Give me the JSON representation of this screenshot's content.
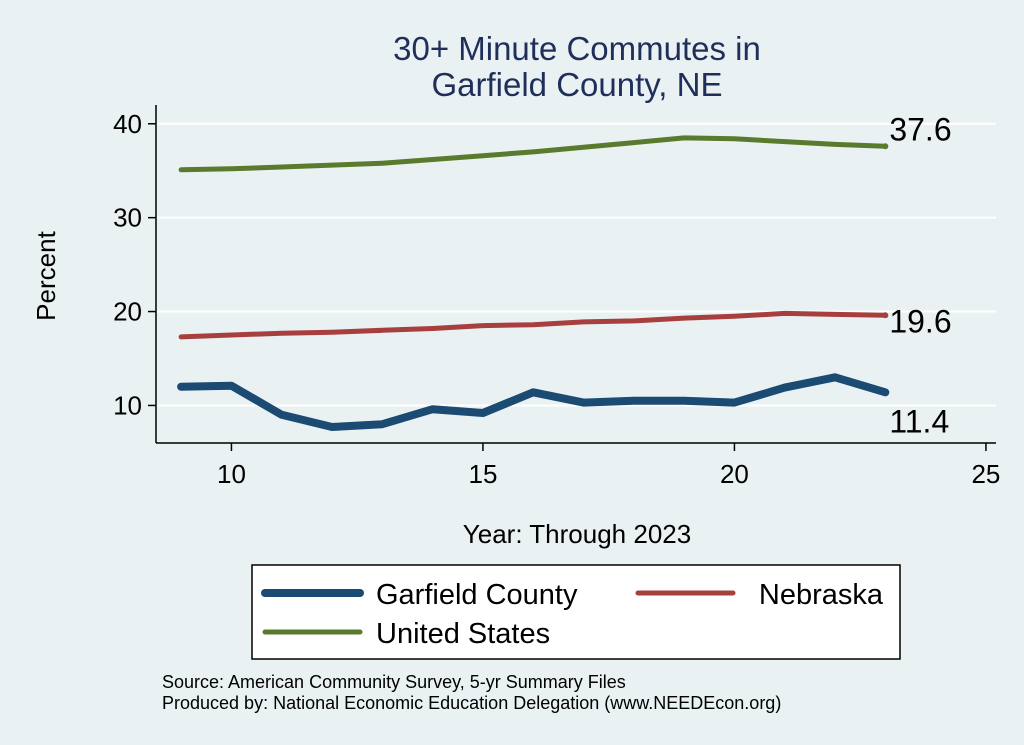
{
  "chart_data": {
    "type": "line",
    "title": [
      "30+ Minute Commutes in",
      "Garfield County, NE"
    ],
    "xlabel": "Year: Through 2023",
    "ylabel": "Percent",
    "xlim": [
      8.5,
      25.2
    ],
    "ylim": [
      6,
      42
    ],
    "xticks": [
      10,
      15,
      20,
      25
    ],
    "yticks": [
      10,
      20,
      30,
      40
    ],
    "grid": true,
    "legend_position": "bottom",
    "series": [
      {
        "name": "Garfield County",
        "color": "#1b4a72",
        "x": [
          9,
          10,
          11,
          12,
          13,
          14,
          15,
          16,
          17,
          18,
          19,
          20,
          21,
          22,
          23
        ],
        "values": [
          12.0,
          12.1,
          9.0,
          7.7,
          8.0,
          9.6,
          9.2,
          11.4,
          10.3,
          10.5,
          10.5,
          10.3,
          11.9,
          13.0,
          11.4
        ],
        "end_label": "11.4"
      },
      {
        "name": "Nebraska",
        "color": "#a83f3f",
        "x": [
          9,
          10,
          11,
          12,
          13,
          14,
          15,
          16,
          17,
          18,
          19,
          20,
          21,
          22,
          23
        ],
        "values": [
          17.3,
          17.5,
          17.7,
          17.8,
          18.0,
          18.2,
          18.5,
          18.6,
          18.9,
          19.0,
          19.3,
          19.5,
          19.8,
          19.7,
          19.6
        ],
        "end_label": "19.6"
      },
      {
        "name": "United States",
        "color": "#5a7a2e",
        "x": [
          9,
          10,
          11,
          12,
          13,
          14,
          15,
          16,
          17,
          18,
          19,
          20,
          21,
          22,
          23
        ],
        "values": [
          35.1,
          35.2,
          35.4,
          35.6,
          35.8,
          36.2,
          36.6,
          37.0,
          37.5,
          38.0,
          38.5,
          38.4,
          38.1,
          37.8,
          37.6
        ],
        "end_label": "37.6"
      }
    ],
    "notes": [
      "Source: American Community Survey, 5-yr Summary Files",
      "Produced by: National Economic Education Delegation (www.NEEDEcon.org)"
    ]
  }
}
